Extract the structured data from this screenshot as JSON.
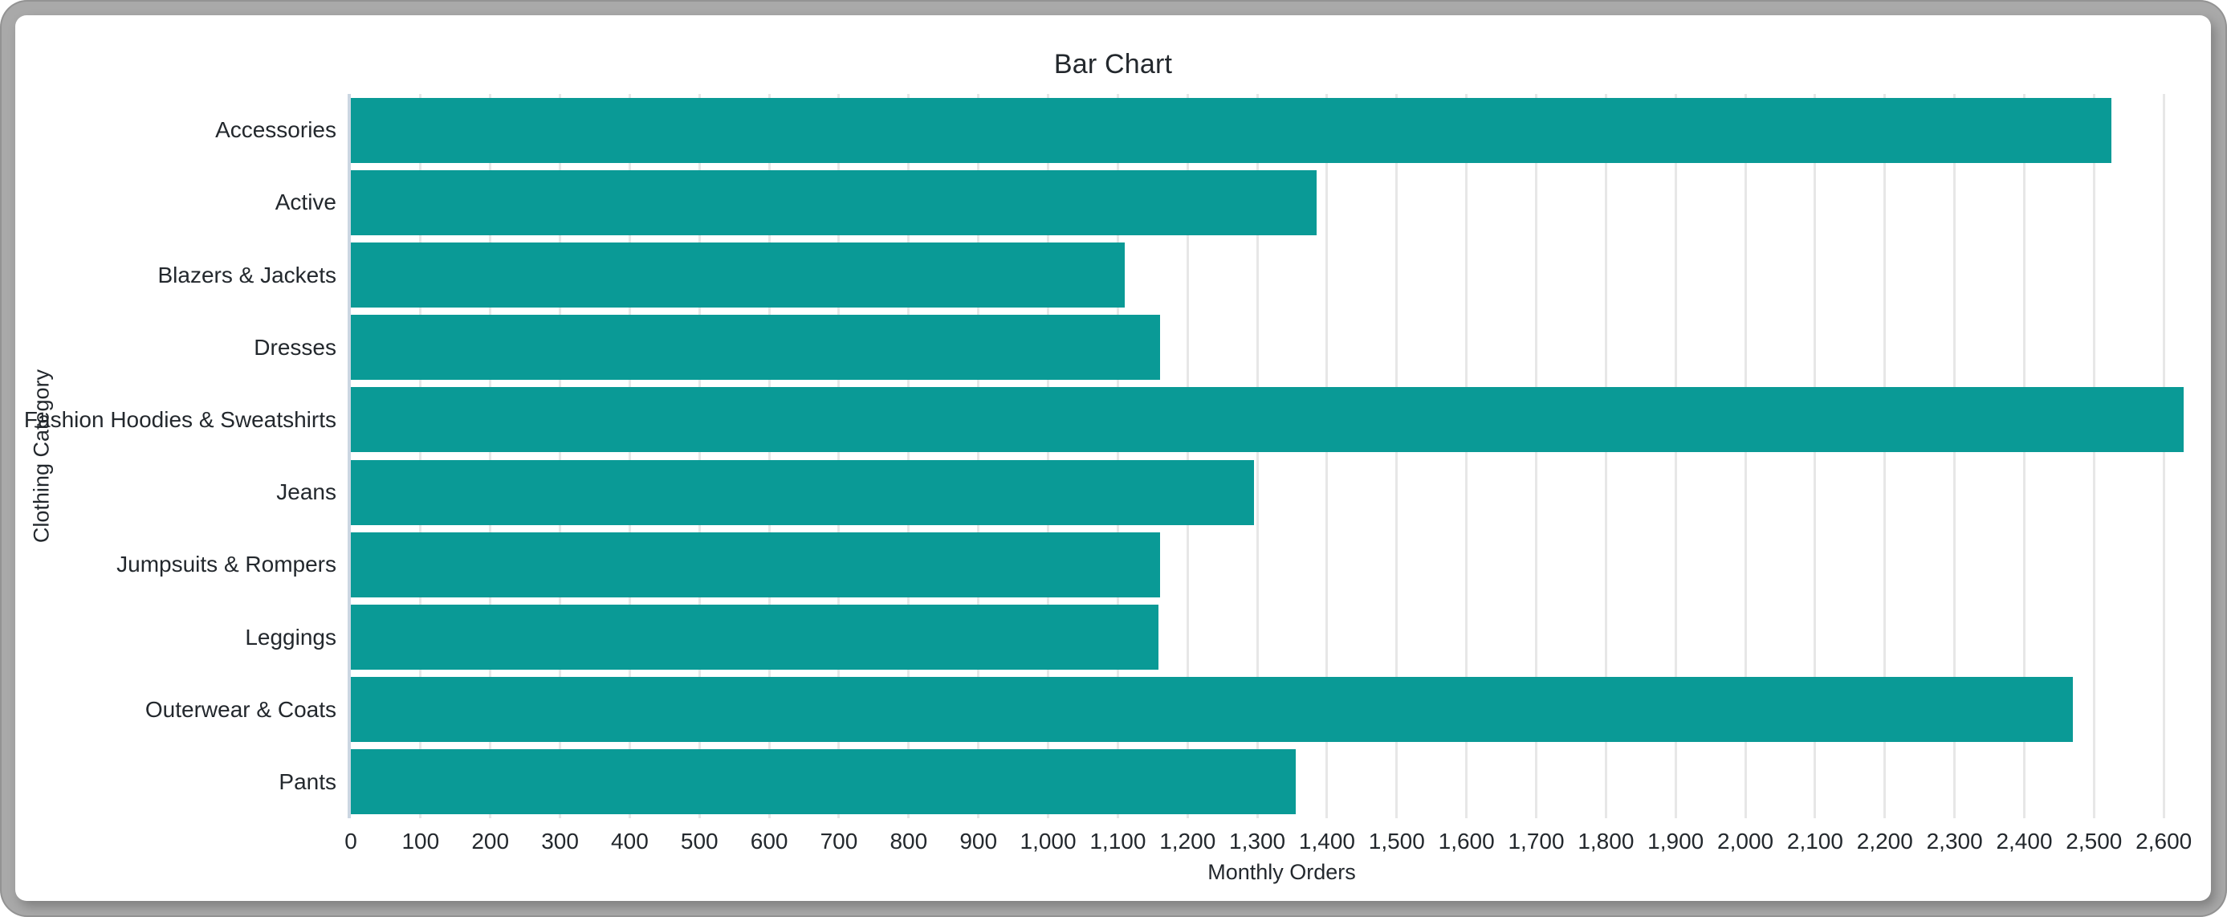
{
  "frame": {
    "color": "#a9a9a9",
    "panel_background": "#ffffff"
  },
  "chart_data": {
    "type": "bar",
    "orientation": "horizontal",
    "title": "Bar Chart",
    "xlabel": "Monthly Orders",
    "ylabel": "Clothing Category",
    "categories": [
      "Accessories",
      "Active",
      "Blazers & Jackets",
      "Dresses",
      "Fashion Hoodies & Sweatshirts",
      "Jeans",
      "Jumpsuits & Rompers",
      "Leggings",
      "Outerwear & Coats",
      "Pants"
    ],
    "values": [
      2525,
      1385,
      1110,
      1160,
      2628,
      1295,
      1160,
      1158,
      2470,
      1355
    ],
    "xlim": [
      0,
      2670
    ],
    "xticks": {
      "start": 0,
      "step": 100,
      "end": 2600,
      "format": "comma"
    },
    "grid": "vertical",
    "legend": "none",
    "colors": {
      "bar": "#0a9a96",
      "gridline": "#e7e7e7",
      "baseline": "#cbd6e2",
      "text": "#23282d"
    }
  }
}
